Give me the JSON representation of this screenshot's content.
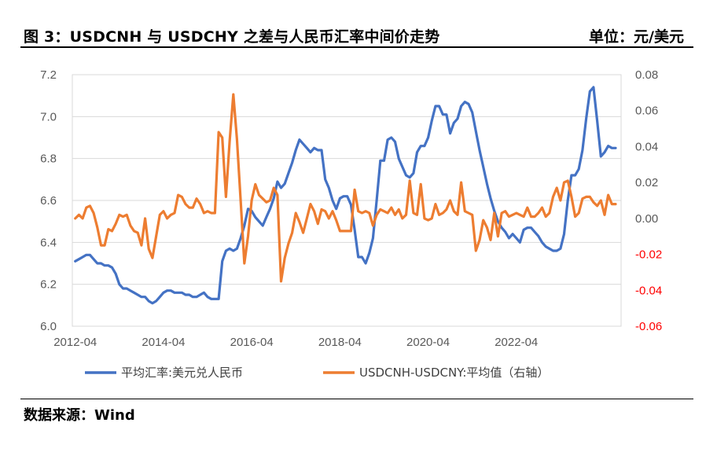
{
  "figure": {
    "title": "图 3：USDCNH 与 USDCHY 之差与人民币汇率中间价走势",
    "unit": "单位：元/美元",
    "source": "数据来源：Wind"
  },
  "colors": {
    "blue": "#4472C4",
    "orange": "#ED7D31",
    "right_axis_negative": "#FF0000",
    "axis_text": "#595959"
  },
  "chart_data": {
    "type": "line",
    "x_ticks": [
      "2012-04",
      "2014-04",
      "2016-04",
      "2018-04",
      "2020-04",
      "2022-04"
    ],
    "y_left_ticks": [
      "6.0",
      "6.2",
      "6.4",
      "6.6",
      "6.8",
      "7.0",
      "7.2"
    ],
    "y_left_lim": [
      6.0,
      7.2
    ],
    "y_right_ticks": [
      "-0.06",
      "-0.04",
      "-0.02",
      "0.00",
      "0.02",
      "0.04",
      "0.06",
      "0.08"
    ],
    "y_right_lim": [
      -0.06,
      0.08
    ],
    "grid": "horizontal",
    "legend_position": "bottom",
    "x_start": "2012-04",
    "x_step": "month",
    "series": [
      {
        "name": "平均汇率:美元兑人民币",
        "axis": "left",
        "color": "#4472C4",
        "values": [
          6.31,
          6.32,
          6.33,
          6.34,
          6.34,
          6.32,
          6.3,
          6.3,
          6.29,
          6.29,
          6.28,
          6.25,
          6.2,
          6.18,
          6.18,
          6.17,
          6.16,
          6.15,
          6.14,
          6.14,
          6.12,
          6.11,
          6.12,
          6.14,
          6.16,
          6.17,
          6.17,
          6.16,
          6.16,
          6.16,
          6.15,
          6.15,
          6.14,
          6.14,
          6.15,
          6.16,
          6.14,
          6.13,
          6.13,
          6.13,
          6.31,
          6.36,
          6.37,
          6.36,
          6.37,
          6.42,
          6.48,
          6.56,
          6.55,
          6.52,
          6.5,
          6.48,
          6.52,
          6.56,
          6.61,
          6.69,
          6.66,
          6.68,
          6.73,
          6.78,
          6.84,
          6.89,
          6.87,
          6.85,
          6.83,
          6.85,
          6.84,
          6.84,
          6.7,
          6.66,
          6.6,
          6.56,
          6.61,
          6.62,
          6.62,
          6.58,
          6.46,
          6.33,
          6.33,
          6.3,
          6.35,
          6.42,
          6.6,
          6.79,
          6.79,
          6.89,
          6.9,
          6.88,
          6.8,
          6.76,
          6.72,
          6.71,
          6.73,
          6.83,
          6.86,
          6.86,
          6.9,
          6.98,
          7.05,
          7.05,
          7.01,
          7.01,
          6.92,
          6.97,
          6.99,
          7.05,
          7.07,
          7.06,
          7.02,
          6.93,
          6.84,
          6.76,
          6.68,
          6.61,
          6.55,
          6.5,
          6.47,
          6.45,
          6.42,
          6.44,
          6.42,
          6.4,
          6.46,
          6.47,
          6.47,
          6.45,
          6.43,
          6.4,
          6.38,
          6.37,
          6.36,
          6.36,
          6.37,
          6.44,
          6.6,
          6.72,
          6.72,
          6.75,
          6.84,
          6.99,
          7.12,
          7.14,
          6.98,
          6.81,
          6.83,
          6.86,
          6.85,
          6.85
        ]
      },
      {
        "name": "USDCNH-USDCNY:平均值（右轴）",
        "axis": "right",
        "color": "#ED7D31",
        "values": [
          0.0,
          0.002,
          0.0,
          0.006,
          0.007,
          0.003,
          -0.005,
          -0.015,
          -0.015,
          -0.006,
          -0.007,
          -0.003,
          0.002,
          0.001,
          0.002,
          -0.004,
          -0.007,
          -0.008,
          -0.015,
          0.0,
          -0.017,
          -0.022,
          -0.01,
          0.002,
          0.004,
          0.0,
          0.002,
          0.003,
          0.013,
          0.012,
          0.008,
          0.006,
          0.006,
          0.011,
          0.008,
          0.003,
          0.004,
          0.003,
          0.003,
          0.048,
          0.045,
          0.012,
          0.043,
          0.069,
          0.044,
          0.01,
          -0.025,
          -0.01,
          0.01,
          0.019,
          0.013,
          0.011,
          0.009,
          0.01,
          0.017,
          0.013,
          -0.035,
          -0.022,
          -0.014,
          -0.008,
          0.003,
          -0.002,
          -0.008,
          0.0,
          0.008,
          0.004,
          -0.003,
          0.005,
          0.004,
          0.0,
          0.004,
          -0.001,
          -0.007,
          -0.007,
          -0.007,
          -0.007,
          0.016,
          0.004,
          0.003,
          0.004,
          0.003,
          -0.004,
          0.002,
          0.005,
          0.004,
          0.003,
          0.006,
          0.002,
          0.005,
          0.0,
          0.002,
          0.021,
          0.003,
          0.002,
          0.019,
          0.0,
          -0.001,
          0.0,
          0.008,
          0.002,
          0.003,
          0.005,
          0.01,
          0.004,
          0.002,
          0.02,
          0.004,
          0.003,
          0.002,
          -0.018,
          -0.012,
          -0.001,
          -0.005,
          -0.012,
          0.003,
          -0.01,
          0.003,
          0.004,
          0.001,
          0.002,
          0.003,
          0.002,
          0.001,
          0.006,
          0.001,
          0.001,
          0.003,
          0.006,
          0.001,
          0.003,
          0.012,
          0.017,
          0.01,
          0.02,
          0.021,
          0.012,
          0.001,
          0.003,
          0.011,
          0.012,
          0.012,
          0.009,
          0.007,
          0.01,
          0.002,
          0.013,
          0.008,
          0.008
        ]
      }
    ]
  }
}
